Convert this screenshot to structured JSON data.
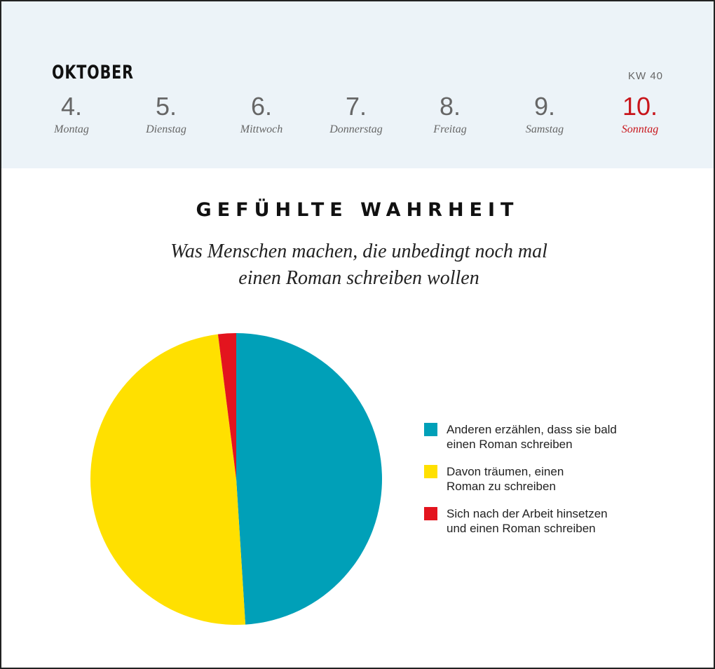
{
  "header": {
    "month": "OKTOBER",
    "week": "KW 40",
    "days": [
      {
        "num": "4.",
        "name": "Montag"
      },
      {
        "num": "5.",
        "name": "Dienstag"
      },
      {
        "num": "6.",
        "name": "Mittwoch"
      },
      {
        "num": "7.",
        "name": "Donnerstag"
      },
      {
        "num": "8.",
        "name": "Freitag"
      },
      {
        "num": "9.",
        "name": "Samstag"
      },
      {
        "num": "10.",
        "name": "Sonntag"
      }
    ]
  },
  "chart_data": {
    "type": "pie",
    "title": "GEFÜHLTE WAHRHEIT",
    "subtitle_lines": [
      "Was Menschen machen, die unbedingt noch mal",
      "einen Roman schreiben wollen"
    ],
    "legend_position": "right",
    "slices": [
      {
        "label": "Anderen erzählen, dass sie bald einen Roman schreiben",
        "label_lines": [
          "Anderen erzählen, dass sie bald",
          "einen Roman schreiben"
        ],
        "value": 49,
        "color": "#00a0b8"
      },
      {
        "label": "Davon träumen, einen Roman zu schreiben",
        "label_lines": [
          "Davon träumen, einen",
          "Roman zu schreiben"
        ],
        "value": 49,
        "color": "#ffe000"
      },
      {
        "label": "Sich nach der Arbeit hinsetzen und einen Roman schreiben",
        "label_lines": [
          "Sich nach der Arbeit hinsetzen",
          "und einen Roman schreiben"
        ],
        "value": 2,
        "color": "#e3141e"
      }
    ]
  }
}
